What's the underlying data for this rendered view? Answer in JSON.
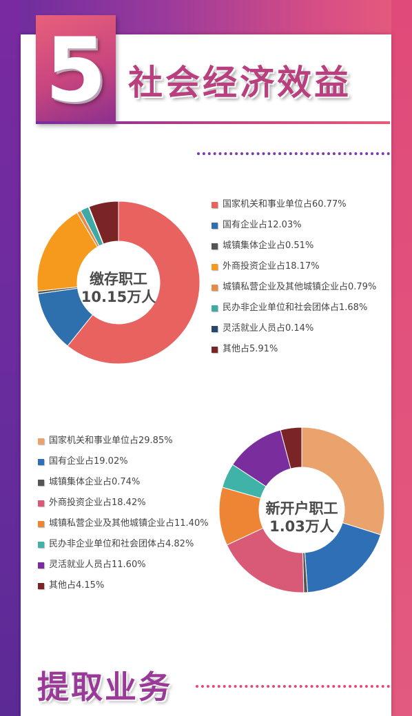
{
  "header": {
    "section_number": "5",
    "title": "社会经济效益"
  },
  "footer": {
    "next_title": "提取业务"
  },
  "colors": {
    "purple": "#7a2aa0",
    "pink": "#e04a7a"
  },
  "chart_data": [
    {
      "type": "pie",
      "variant": "donut",
      "center_label": [
        "缴存职工",
        "10.15万人"
      ],
      "legend_position": "right",
      "categories": [
        "国家机关和事业单位",
        "国有企业",
        "城镇集体企业",
        "外商投资企业",
        "城镇私营企业及其他城镇企业",
        "民办非企业单位和社会团体",
        "灵活就业人员",
        "其他"
      ],
      "values": [
        60.77,
        12.03,
        0.51,
        18.17,
        0.79,
        1.68,
        0.14,
        5.91
      ],
      "legend_labels": [
        "国家机关和事业单位占60.77%",
        "国有企业占12.03%",
        "城镇集体企业占0.51%",
        "外商投资企业占18.17%",
        "城镇私营企业及其他城镇企业占0.79%",
        "民办非企业单位和社会团体占1.68%",
        "灵活就业人员占0.14%",
        "其他占5.91%"
      ],
      "colors": [
        "#e8625f",
        "#2e6fad",
        "#555555",
        "#f59a1c",
        "#e58a4a",
        "#3fa9a6",
        "#27466e",
        "#7b2426"
      ]
    },
    {
      "type": "pie",
      "variant": "donut",
      "center_label": [
        "新开户职工",
        "1.03万人"
      ],
      "legend_position": "left",
      "categories": [
        "国家机关和事业单位",
        "国有企业",
        "城镇集体企业",
        "外商投资企业",
        "城镇私营企业及其他城镇企业",
        "民办非企业单位和社会团体",
        "灵活就业人员",
        "其他"
      ],
      "values": [
        29.85,
        19.02,
        0.74,
        18.42,
        11.4,
        4.82,
        11.6,
        4.15
      ],
      "legend_labels": [
        "国家机关和事业单位占29.85%",
        "国有企业占19.02%",
        "城镇集体企业占0.74%",
        "外商投资企业占18.42%",
        "城镇私营企业及其他城镇企业占11.40%",
        "民办非企业单位和社会团体占4.82%",
        "灵活就业人员占11.60%",
        "其他占4.15%"
      ],
      "colors": [
        "#eba36e",
        "#2e6fb6",
        "#555555",
        "#d85a76",
        "#ed8534",
        "#3fb3a8",
        "#7a2e9e",
        "#7b2426"
      ]
    }
  ]
}
